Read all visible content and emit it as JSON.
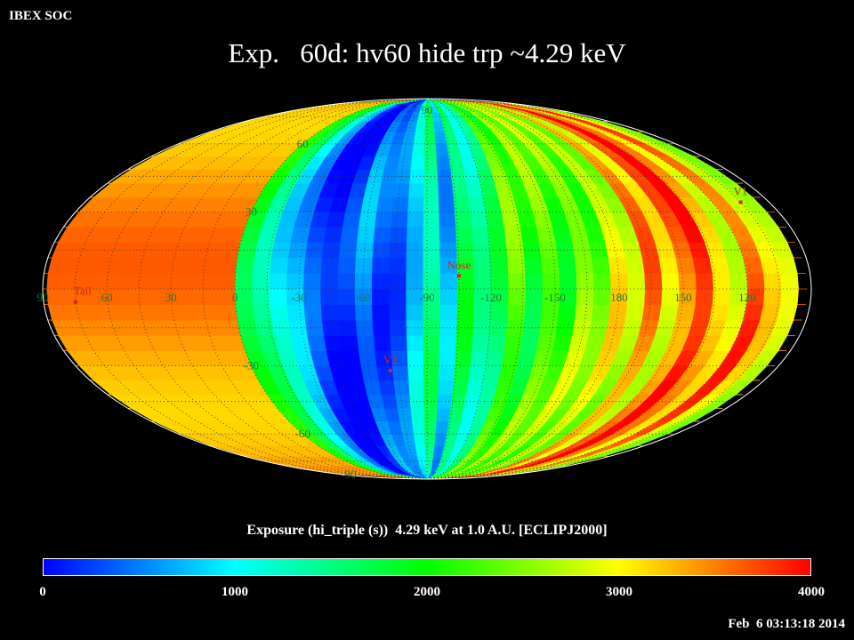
{
  "header": {
    "organization": "IBEX SOC",
    "title": "Exp.   60d: hv60 hide trp ~4.29 keV"
  },
  "map": {
    "projection": "Mollweide (ecliptic, J2000)",
    "latitude_labels": [
      "90",
      "60",
      "30",
      "-30",
      "-60",
      "-90"
    ],
    "longitude_labels": [
      "60",
      "30",
      "0",
      "-30",
      "-60",
      "-90",
      "-120",
      "-150",
      "180",
      "150",
      "120",
      "90"
    ],
    "markers": [
      {
        "name": "V1",
        "lon": 105.0,
        "lat": 34.0
      },
      {
        "name": "Nose",
        "lon": 255.0,
        "lat": 5.0
      },
      {
        "name": "V2",
        "lon": 289.0,
        "lat": -32.0
      },
      {
        "name": "Tail",
        "lon": 75.0,
        "lat": -5.0
      }
    ],
    "marker_color": "#cc2a20",
    "label_color": "#1e7a3a"
  },
  "colorbar": {
    "title": "Exposure (hi_triple (s))  4.29 keV at 1.0 A.U. [ECLIPJ2000]",
    "min": 0,
    "max": 4000,
    "ticks": [
      "0",
      "1000",
      "2000",
      "3000",
      "4000"
    ],
    "colors": [
      "#0000ff",
      "#00ffff",
      "#00ff00",
      "#ffff00",
      "#ff0000"
    ]
  },
  "footer": {
    "timestamp": "Feb  6 03:13:18 2014"
  }
}
